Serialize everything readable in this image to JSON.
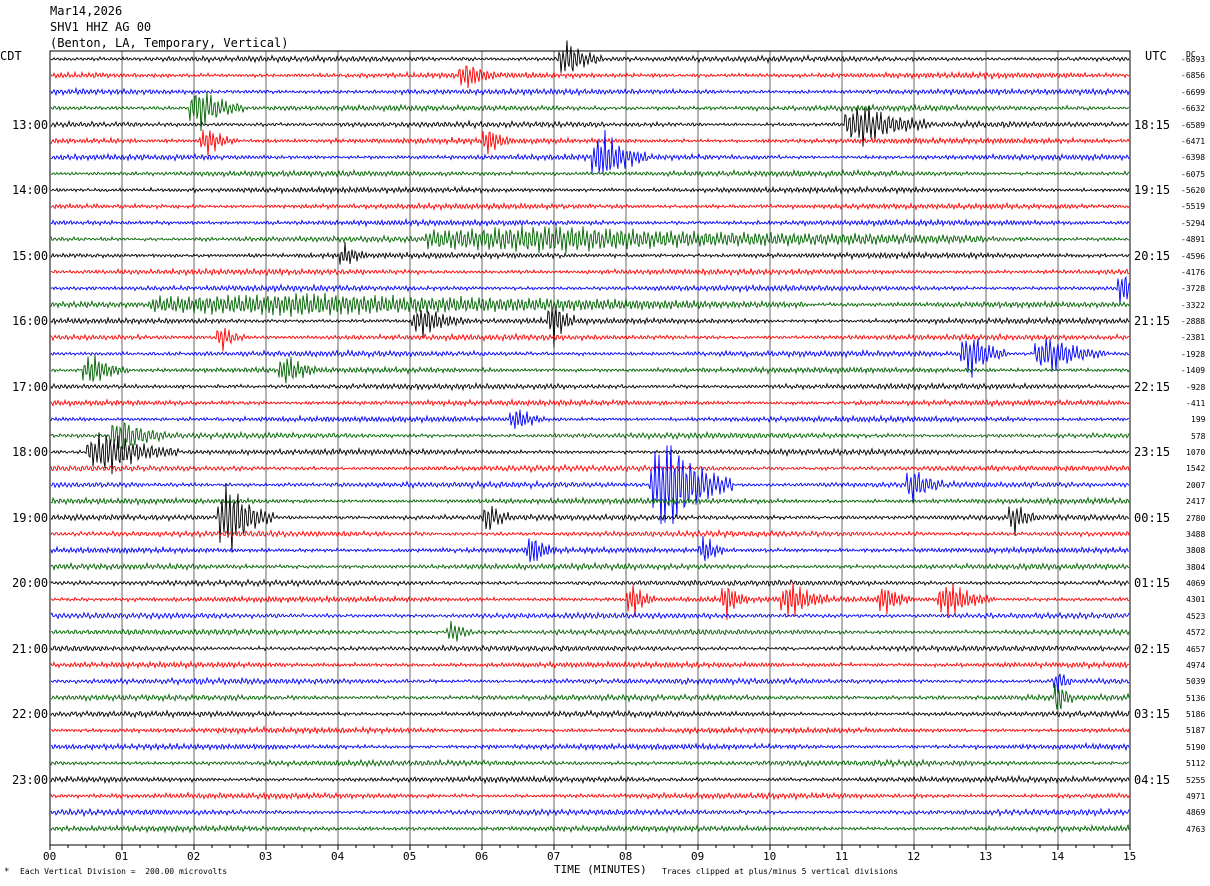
{
  "header": {
    "date": "Mar14,2026",
    "station": "SHV1 HHZ AG 00",
    "location": "(Benton, LA, Temporary, Vertical)"
  },
  "left_tz": "CDT",
  "right_tz": "UTC",
  "dc_header": "DC",
  "footer": {
    "scale": "Each Vertical Division =  200.00 microvolts",
    "xlabel": "TIME (MINUTES)",
    "clip": "Traces clipped at plus/minus 5 vertical divisions"
  },
  "colors": {
    "trace_cycle": [
      "#000000",
      "#ff0000",
      "#0000ff",
      "#006400"
    ],
    "grid": "#000000"
  },
  "chart_data": {
    "type": "line",
    "title": "SHV1 HHZ AG 00",
    "xlabel": "TIME (MINUTES)",
    "x_ticks": [
      "00",
      "01",
      "02",
      "03",
      "04",
      "05",
      "06",
      "07",
      "08",
      "09",
      "10",
      "11",
      "12",
      "13",
      "14",
      "15"
    ],
    "xlim": [
      0,
      15
    ],
    "left_time_labels": [
      "13:00",
      "14:00",
      "15:00",
      "16:00",
      "17:00",
      "18:00",
      "19:00",
      "20:00",
      "21:00",
      "22:00",
      "23:00"
    ],
    "right_time_labels": [
      "18:15",
      "19:15",
      "20:15",
      "21:15",
      "22:15",
      "23:15",
      "00:15",
      "01:15",
      "02:15",
      "03:15",
      "04:15"
    ],
    "trace_offsets": [
      "-6893",
      "-6856",
      "-6699",
      "-6632",
      "-6589",
      "-6471",
      "-6398",
      "-6075",
      "-5620",
      "-5519",
      "-5294",
      "-4891",
      "-4596",
      "-4176",
      "-3728",
      "-3322",
      "-2888",
      "-2381",
      "-1928",
      "-1409",
      "-928",
      "-411",
      "199",
      "578",
      "1070",
      "1542",
      "2007",
      "2417",
      "2780",
      "3488",
      "3808",
      "3804",
      "4069",
      "4301",
      "4523",
      "4572",
      "4657",
      "4974",
      "5039",
      "5136",
      "5186",
      "5187",
      "5190",
      "5112",
      "5255",
      "4971",
      "4869",
      "4763"
    ],
    "trace_count": 48,
    "traces_per_hour": 4,
    "minutes_per_trace": 15,
    "scale_microvolts_per_division": 200,
    "clip_divisions": 5,
    "events": [
      {
        "trace": 0,
        "minute": 7.2,
        "amp": 1.0,
        "dur": 0.5
      },
      {
        "trace": 1,
        "minute": 5.8,
        "amp": 0.7,
        "dur": 0.4
      },
      {
        "trace": 3,
        "minute": 2.1,
        "amp": 1.2,
        "dur": 0.6
      },
      {
        "trace": 4,
        "minute": 11.3,
        "amp": 1.1,
        "dur": 0.9
      },
      {
        "trace": 5,
        "minute": 2.2,
        "amp": 0.8,
        "dur": 0.4
      },
      {
        "trace": 5,
        "minute": 6.1,
        "amp": 0.7,
        "dur": 0.3
      },
      {
        "trace": 6,
        "minute": 7.7,
        "amp": 1.3,
        "dur": 0.6
      },
      {
        "trace": 11,
        "minute": 7.0,
        "amp": 0.7,
        "dur": 6.0
      },
      {
        "trace": 12,
        "minute": 4.1,
        "amp": 0.6,
        "dur": 0.3
      },
      {
        "trace": 14,
        "minute": 14.9,
        "amp": 1.0,
        "dur": 0.3
      },
      {
        "trace": 15,
        "minute": 3.5,
        "amp": 0.6,
        "dur": 7.0
      },
      {
        "trace": 16,
        "minute": 5.2,
        "amp": 0.8,
        "dur": 0.6
      },
      {
        "trace": 16,
        "minute": 7.0,
        "amp": 1.2,
        "dur": 0.3
      },
      {
        "trace": 17,
        "minute": 2.4,
        "amp": 0.7,
        "dur": 0.3
      },
      {
        "trace": 18,
        "minute": 12.8,
        "amp": 1.2,
        "dur": 0.5
      },
      {
        "trace": 18,
        "minute": 13.9,
        "amp": 1.0,
        "dur": 0.8
      },
      {
        "trace": 19,
        "minute": 0.6,
        "amp": 0.9,
        "dur": 0.5
      },
      {
        "trace": 19,
        "minute": 3.3,
        "amp": 0.8,
        "dur": 0.4
      },
      {
        "trace": 22,
        "minute": 6.5,
        "amp": 0.6,
        "dur": 0.4
      },
      {
        "trace": 23,
        "minute": 1.0,
        "amp": 1.0,
        "dur": 0.6
      },
      {
        "trace": 24,
        "minute": 0.8,
        "amp": 1.2,
        "dur": 1.0
      },
      {
        "trace": 26,
        "minute": 8.6,
        "amp": 2.8,
        "dur": 0.9
      },
      {
        "trace": 26,
        "minute": 12.0,
        "amp": 0.9,
        "dur": 0.4
      },
      {
        "trace": 28,
        "minute": 2.5,
        "amp": 2.0,
        "dur": 0.6
      },
      {
        "trace": 28,
        "minute": 6.1,
        "amp": 0.8,
        "dur": 0.3
      },
      {
        "trace": 28,
        "minute": 13.4,
        "amp": 0.8,
        "dur": 0.3
      },
      {
        "trace": 30,
        "minute": 6.7,
        "amp": 0.9,
        "dur": 0.3
      },
      {
        "trace": 30,
        "minute": 9.1,
        "amp": 0.8,
        "dur": 0.3
      },
      {
        "trace": 33,
        "minute": 8.1,
        "amp": 1.0,
        "dur": 0.3
      },
      {
        "trace": 33,
        "minute": 9.4,
        "amp": 1.0,
        "dur": 0.3
      },
      {
        "trace": 33,
        "minute": 10.3,
        "amp": 1.0,
        "dur": 0.5
      },
      {
        "trace": 33,
        "minute": 11.6,
        "amp": 0.8,
        "dur": 0.4
      },
      {
        "trace": 33,
        "minute": 12.5,
        "amp": 1.0,
        "dur": 0.6
      },
      {
        "trace": 35,
        "minute": 5.6,
        "amp": 0.6,
        "dur": 0.3
      },
      {
        "trace": 38,
        "minute": 14.0,
        "amp": 0.7,
        "dur": 0.2
      },
      {
        "trace": 39,
        "minute": 14.0,
        "amp": 1.0,
        "dur": 0.2
      }
    ]
  }
}
